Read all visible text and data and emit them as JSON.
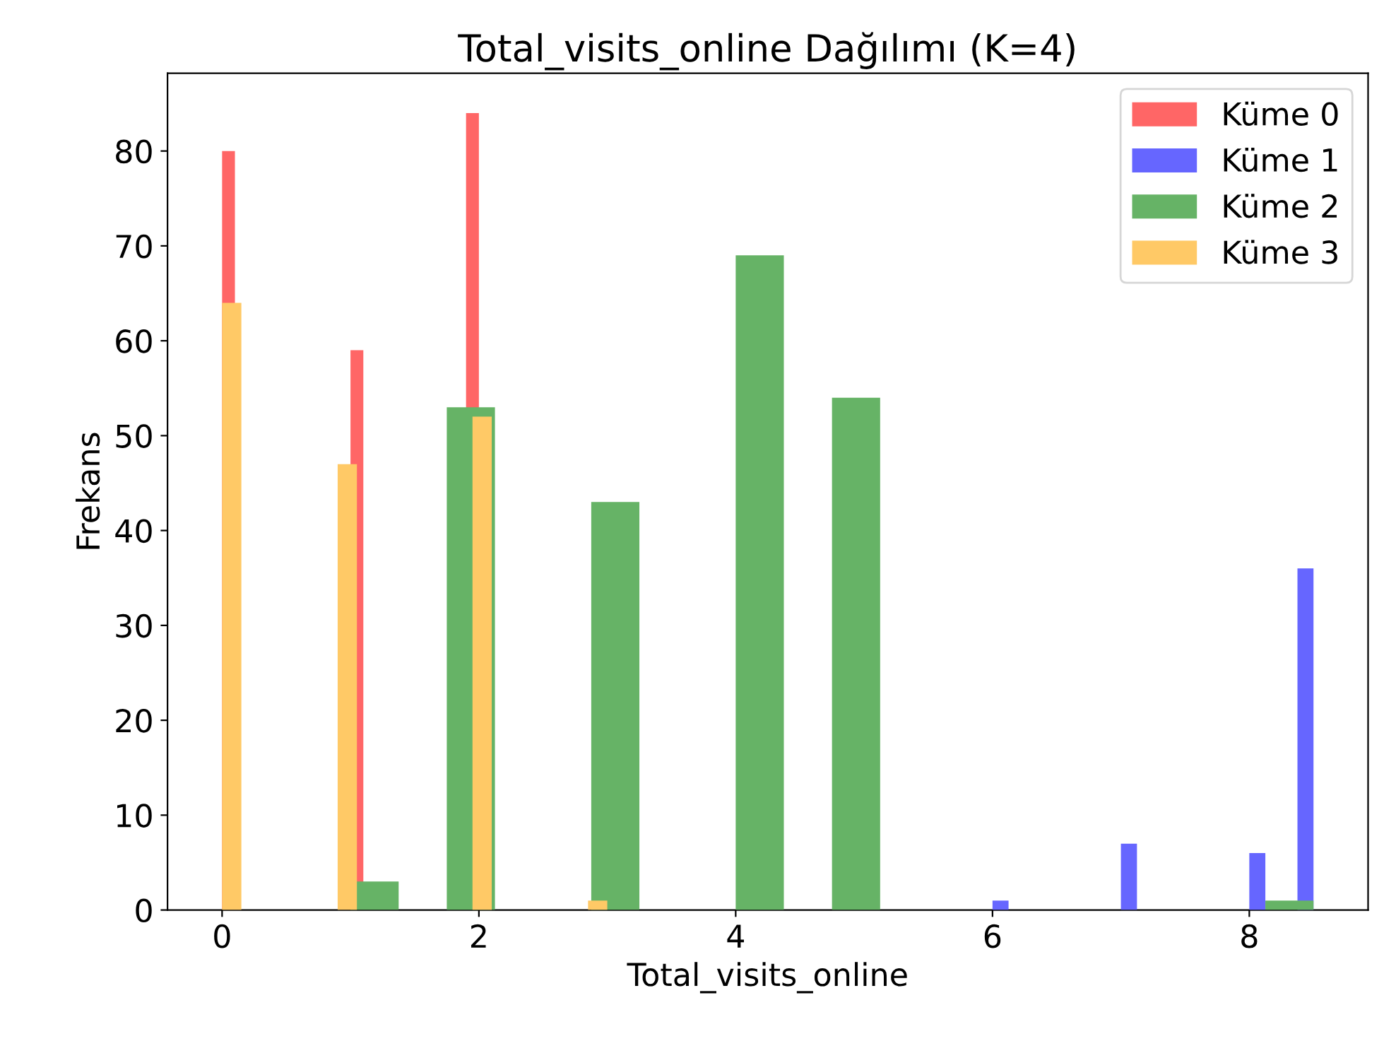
{
  "chart_data": [
    {
      "type": "histogram",
      "title": "Total_visits_online Dağılımı (K=4)",
      "xlabel": "Total_visits_online",
      "ylabel": "Frekans",
      "bins": [
        0,
        0.1,
        0.2,
        0.3,
        0.4,
        0.5,
        0.6,
        0.7,
        0.8,
        0.9,
        1.0,
        1.1,
        1.2,
        1.3,
        1.4,
        1.5,
        1.6,
        1.7,
        1.8,
        1.9,
        2.0
      ],
      "series": [
        {
          "name": "Küme 0",
          "color": "#ff6666",
          "values": [
            80,
            0,
            0,
            0,
            0,
            0,
            0,
            0,
            0,
            0,
            59,
            0,
            0,
            0,
            0,
            0,
            0,
            0,
            0,
            84
          ]
        }
      ],
      "xlim": [
        -0.425,
        8.925
      ],
      "xticks": [
        0,
        2,
        4,
        6,
        8
      ],
      "ylim": [
        0,
        88.2
      ],
      "yticks": [
        0,
        10,
        20,
        30,
        40,
        50,
        60,
        70,
        80
      ]
    },
    {
      "type": "histogram",
      "bins": [
        6,
        6.125,
        6.25,
        6.375,
        6.5,
        6.625,
        6.75,
        6.875,
        7,
        7.125,
        7.25,
        7.375,
        7.5,
        7.625,
        7.75,
        7.875,
        8,
        8.125,
        8.25,
        8.375,
        8.5
      ],
      "series": [
        {
          "name": "Küme 1",
          "color": "#6666ff",
          "values": [
            1,
            0,
            0,
            0,
            0,
            0,
            0,
            0,
            7,
            0,
            0,
            0,
            0,
            0,
            0,
            0,
            6,
            0,
            0,
            36
          ]
        }
      ],
      "xlim": [
        -0.425,
        8.925
      ],
      "ylim": [
        0,
        88.2
      ],
      "tick_labels": false
    },
    {
      "type": "histogram",
      "bins": [
        1,
        1.375,
        1.75,
        2.125,
        2.5,
        2.875,
        3.25,
        3.625,
        4,
        4.375,
        4.75,
        5.125,
        5.5,
        5.875,
        6.25,
        6.625,
        7,
        7.375,
        7.75,
        8.125,
        8.5
      ],
      "series": [
        {
          "name": "Küme 2",
          "color": "#66b366",
          "values": [
            3,
            0,
            53,
            0,
            0,
            43,
            0,
            0,
            69,
            0,
            54,
            0,
            0,
            0,
            0,
            0,
            0,
            0,
            0,
            1
          ]
        }
      ],
      "xlim": [
        -0.425,
        8.925
      ],
      "ylim": [
        0,
        88.2
      ],
      "tick_labels": false
    },
    {
      "type": "histogram",
      "bins": [
        0,
        0.15,
        0.3,
        0.45,
        0.6,
        0.75,
        0.9,
        1.05,
        1.2,
        1.35,
        1.5,
        1.65,
        1.8,
        1.95,
        2.1,
        2.25,
        2.4,
        2.55,
        2.7,
        2.85,
        3.0
      ],
      "series": [
        {
          "name": "Küme 3",
          "color": "#ffc966",
          "values": [
            64,
            0,
            0,
            0,
            0,
            0,
            47,
            0,
            0,
            0,
            0,
            0,
            0,
            52,
            0,
            0,
            0,
            0,
            0,
            1
          ]
        }
      ],
      "xlim": [
        -0.425,
        8.925
      ],
      "ylim": [
        0,
        88.2
      ],
      "tick_labels": false,
      "legend": "top right"
    }
  ]
}
